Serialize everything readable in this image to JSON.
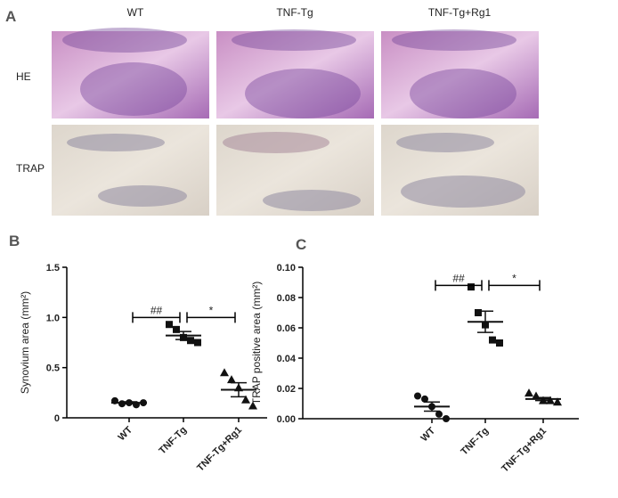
{
  "figure_a": {
    "letter": "A",
    "columns": [
      "WT",
      "TNF-Tg",
      "TNF-Tg+Rg1"
    ],
    "rows": [
      "HE",
      "TRAP"
    ]
  },
  "chart_data": [
    {
      "type": "dot",
      "panel": "B",
      "ylabel": "Synovium area (mm²)",
      "categories": [
        "WT",
        "TNF-Tg",
        "TNF-Tg+Rg1"
      ],
      "markers": [
        "circle",
        "square",
        "triangle"
      ],
      "color": "#111111",
      "points": [
        [
          0.17,
          0.14,
          0.15,
          0.13,
          0.15
        ],
        [
          0.93,
          0.88,
          0.8,
          0.77,
          0.75
        ],
        [
          0.45,
          0.38,
          0.3,
          0.18,
          0.12
        ]
      ],
      "means": [
        0.15,
        0.82,
        0.28
      ],
      "errors": [
        0.01,
        0.04,
        0.07
      ],
      "ylim": [
        0,
        1.5
      ],
      "yticks": [
        0,
        0.5,
        {
          "value": 1,
          "label": "1.0"
        },
        1.5
      ],
      "annotations": [
        {
          "text": "##",
          "between": [
            "WT",
            "TNF-Tg"
          ],
          "y": 1.0
        },
        {
          "text": "*",
          "between": [
            "TNF-Tg",
            "TNF-Tg+Rg1"
          ],
          "y": 1.0
        }
      ]
    },
    {
      "type": "dot",
      "panel": "C",
      "ylabel": "TRAP positive area (mm²)",
      "categories": [
        "WT",
        "TNF-Tg",
        "TNF-Tg+Rg1"
      ],
      "markers": [
        "circle",
        "square",
        "triangle"
      ],
      "color": "#111111",
      "points": [
        [
          0.015,
          0.013,
          0.008,
          0.003,
          0.0
        ],
        [
          0.087,
          0.07,
          0.062,
          0.052,
          0.05
        ],
        [
          0.017,
          0.015,
          0.012,
          0.012,
          0.011
        ]
      ],
      "means": [
        0.008,
        0.064,
        0.013
      ],
      "errors": [
        0.003,
        0.007,
        0.001
      ],
      "ylim": [
        0,
        0.1
      ],
      "yticks": [
        {
          "value": 0,
          "label": "0.00"
        },
        {
          "value": 0.02,
          "label": "0.02"
        },
        {
          "value": 0.04,
          "label": "0.04"
        },
        {
          "value": 0.06,
          "label": "0.06"
        },
        {
          "value": 0.08,
          "label": "0.08"
        },
        {
          "value": 0.1,
          "label": "0.10"
        }
      ],
      "annotations": [
        {
          "text": "##",
          "between": [
            "WT",
            "TNF-Tg"
          ],
          "y": 0.088
        },
        {
          "text": "*",
          "between": [
            "TNF-Tg",
            "TNF-Tg+Rg1"
          ],
          "y": 0.088
        }
      ]
    }
  ]
}
